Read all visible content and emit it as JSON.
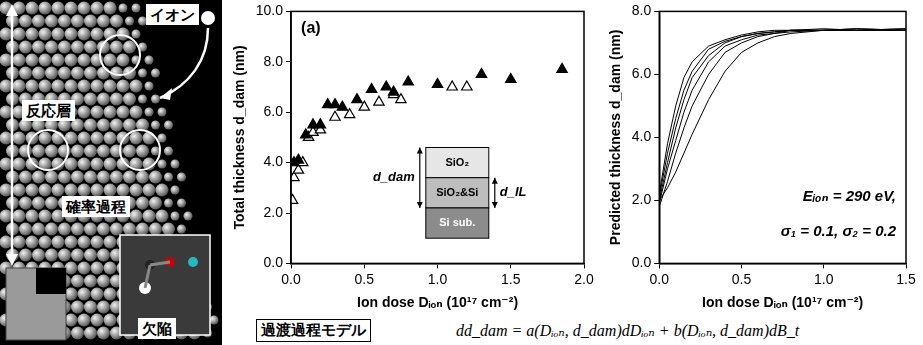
{
  "panel": {
    "ion": "イオン",
    "layer": "反応層",
    "process": "確率過程",
    "defect": "欠陥"
  },
  "chart_data": [
    {
      "type": "scatter",
      "title": "(a)",
      "x_label": "Ion dose Dᵢₒₙ (10¹⁷ cm⁻²)",
      "y_label": "Total thickness d_dam (nm)",
      "xlim": [
        0,
        2.0
      ],
      "xticks": [
        {
          "value": 0,
          "label": "0.0"
        },
        {
          "value": 0.5,
          "label": "0.5"
        },
        {
          "value": 1,
          "label": "1.0"
        },
        {
          "value": 1.5,
          "label": "1.5"
        },
        {
          "value": 2,
          "label": "2.0"
        }
      ],
      "ylim": [
        0,
        10
      ],
      "yticks": [
        {
          "value": 0,
          "label": "0.0"
        },
        {
          "value": 2,
          "label": "2.0"
        },
        {
          "value": 4,
          "label": "4.0"
        },
        {
          "value": 6,
          "label": "6.0"
        },
        {
          "value": 8,
          "label": "8.0"
        },
        {
          "value": 10,
          "label": "10.0"
        }
      ],
      "grid": false,
      "inset": {
        "layers": [
          "SiO₂",
          "SiO₂&Si",
          "Si sub."
        ],
        "total": "d_dam",
        "interlayer": "d_IL"
      },
      "series": [
        {
          "color": "#000000",
          "marker": "filled_triangle",
          "x": [
            0.02,
            0.05,
            0.1,
            0.15,
            0.2,
            0.25,
            0.3,
            0.35,
            0.45,
            0.55,
            0.65,
            0.7,
            0.8,
            1.0,
            1.3,
            1.5,
            1.85
          ],
          "values": [
            4.0,
            4.1,
            5.1,
            5.5,
            5.5,
            6.3,
            6.3,
            6.2,
            6.5,
            6.9,
            7.0,
            6.8,
            7.2,
            7.1,
            7.5,
            7.3,
            7.7
          ]
        },
        {
          "color": "#000000",
          "marker": "open_triangle",
          "x": [
            0.01,
            0.02,
            0.05,
            0.08,
            0.12,
            0.15,
            0.2,
            0.3,
            0.4,
            0.5,
            0.6,
            0.7,
            0.75,
            1.1,
            1.2
          ],
          "values": [
            2.5,
            3.4,
            3.7,
            4.0,
            5.0,
            5.2,
            5.3,
            5.8,
            5.9,
            6.2,
            6.4,
            6.7,
            6.5,
            7.0,
            7.0
          ]
        }
      ]
    },
    {
      "type": "line",
      "x_label": "Ion dose Dᵢₒₙ (10¹⁷ cm⁻²)",
      "y_label": "Predicted thickness d_dam (nm)",
      "annotations": [
        "Eᵢₒₙ = 290 eV,",
        "σ₁ = 0.1, σ₂ = 0.2"
      ],
      "xlim": [
        0,
        1.5
      ],
      "xticks": [
        {
          "value": 0,
          "label": "0.0"
        },
        {
          "value": 0.5,
          "label": "0.5"
        },
        {
          "value": 1,
          "label": "1.0"
        },
        {
          "value": 1.5,
          "label": "1.5"
        }
      ],
      "ylim": [
        0,
        8
      ],
      "yticks": [
        {
          "value": 0,
          "label": "0.0"
        },
        {
          "value": 2,
          "label": "2.0"
        },
        {
          "value": 4,
          "label": "4.0"
        },
        {
          "value": 6,
          "label": "6.0"
        },
        {
          "value": 8,
          "label": "8.0"
        }
      ],
      "grid": false,
      "x": [
        0,
        0.05,
        0.1,
        0.15,
        0.2,
        0.3,
        0.4,
        0.5,
        0.6,
        0.7,
        0.8,
        1.0,
        1.2,
        1.5
      ],
      "series": [
        {
          "color": "#000000",
          "line_style": "solid",
          "values": [
            2.0,
            3.2,
            4.3,
            5.2,
            5.9,
            6.6,
            7.0,
            7.2,
            7.3,
            7.35,
            7.4,
            7.4,
            7.45,
            7.4
          ]
        },
        {
          "color": "#000000",
          "line_style": "solid",
          "values": [
            1.8,
            2.6,
            3.5,
            4.3,
            5.0,
            6.0,
            6.7,
            7.0,
            7.2,
            7.3,
            7.4,
            7.4,
            7.4,
            7.45
          ]
        },
        {
          "color": "#000000",
          "line_style": "solid",
          "values": [
            2.2,
            3.8,
            5.0,
            5.9,
            6.4,
            6.9,
            7.1,
            7.25,
            7.35,
            7.4,
            7.4,
            7.45,
            7.4,
            7.4
          ]
        },
        {
          "color": "#000000",
          "line_style": "solid",
          "values": [
            2.0,
            2.4,
            2.9,
            3.5,
            4.1,
            5.2,
            6.1,
            6.7,
            7.0,
            7.2,
            7.3,
            7.4,
            7.4,
            7.4
          ]
        },
        {
          "color": "#000000",
          "line_style": "solid",
          "values": [
            1.9,
            3.0,
            3.9,
            4.8,
            5.5,
            6.4,
            6.9,
            7.1,
            7.25,
            7.3,
            7.35,
            7.4,
            7.45,
            7.4
          ]
        },
        {
          "color": "#000000",
          "line_style": "solid",
          "values": [
            2.1,
            3.5,
            4.6,
            5.5,
            6.1,
            6.8,
            7.05,
            7.2,
            7.3,
            7.35,
            7.4,
            7.4,
            7.4,
            7.45
          ]
        }
      ]
    }
  ],
  "model": {
    "label": "過渡過程モデル",
    "equation": "dd_dam = a(Dᵢₒₙ, d_dam)dDᵢₒₙ + b(Dᵢₒₙ, d_dam)dB_t"
  }
}
